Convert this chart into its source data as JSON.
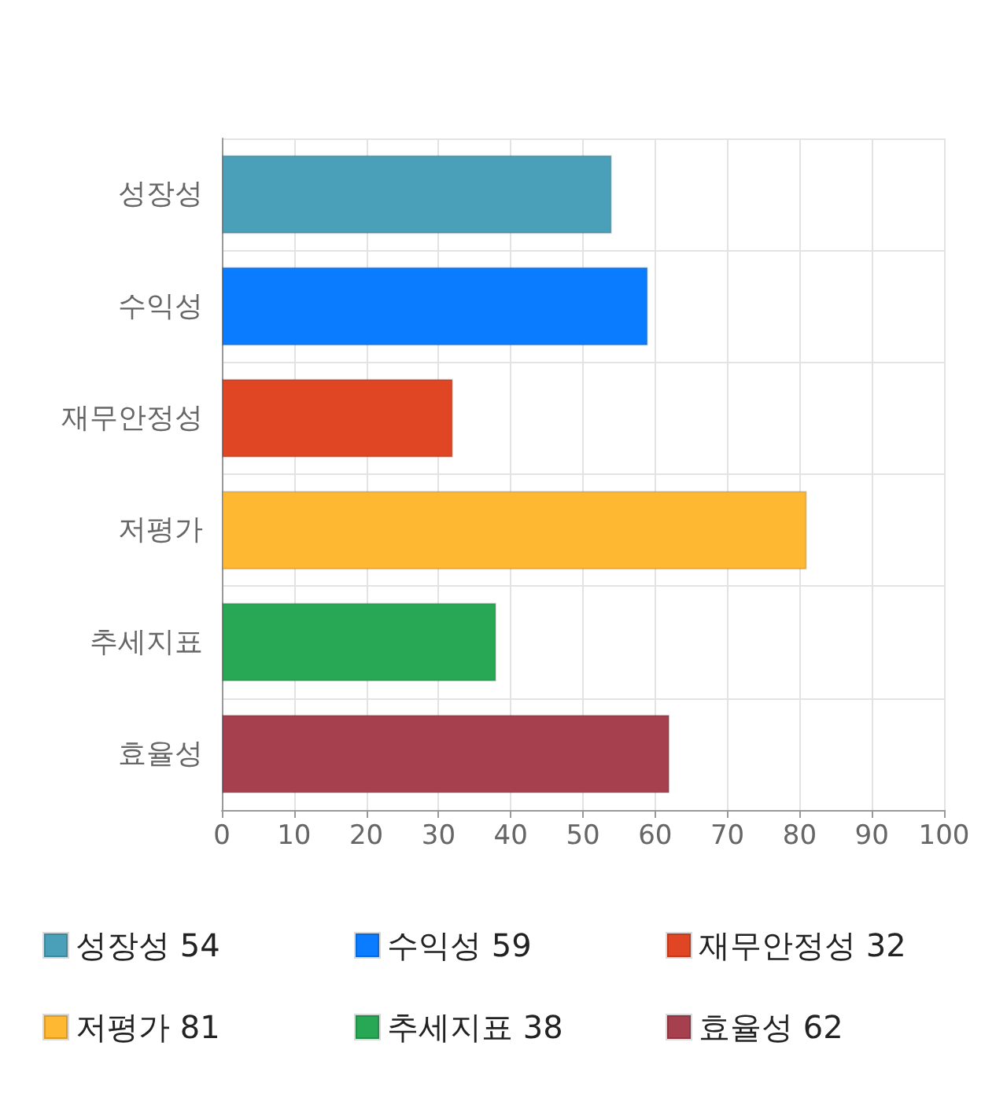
{
  "chart_data": {
    "type": "bar",
    "orientation": "horizontal",
    "stacked": true,
    "categories": [
      "성장성",
      "수익성",
      "재무안정성",
      "저평가",
      "추세지표",
      "효율성"
    ],
    "series": [
      {
        "name": "성장성 54",
        "color": "#4aa0b8",
        "values": [
          54,
          null,
          null,
          null,
          null,
          null
        ]
      },
      {
        "name": "수익성 59",
        "color": "#0a7cff",
        "values": [
          null,
          59,
          null,
          null,
          null,
          null
        ]
      },
      {
        "name": "재무안정성 32",
        "color": "#e14624",
        "values": [
          null,
          null,
          32,
          null,
          null,
          null
        ]
      },
      {
        "name": "저평가 81",
        "color": "#ffb832",
        "values": [
          null,
          null,
          null,
          81,
          null,
          null
        ]
      },
      {
        "name": "추세지표 38",
        "color": "#28a755",
        "values": [
          null,
          null,
          null,
          null,
          38,
          null
        ]
      },
      {
        "name": "효율성 62",
        "color": "#a6404f",
        "values": [
          null,
          null,
          null,
          null,
          null,
          62
        ]
      }
    ],
    "xlim": [
      0,
      100
    ],
    "xticks": [
      0,
      10,
      20,
      30,
      40,
      50,
      60,
      70,
      80,
      90,
      100
    ],
    "grid": true,
    "legend": "bottom"
  }
}
